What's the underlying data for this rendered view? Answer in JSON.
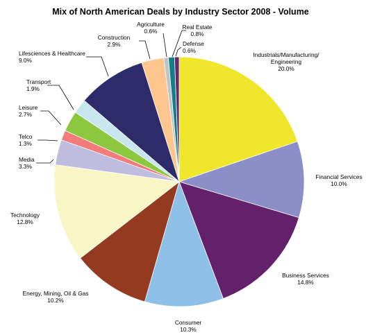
{
  "chart_data": {
    "type": "pie",
    "title": "Mix of North American Deals by Industry Sector 2008 - Volume",
    "start_angle_deg": 0,
    "direction": "clockwise",
    "slices": [
      {
        "label": "Industrials/Manufacturing/ Engineering",
        "lines": [
          "Industrials/Manufacturing/",
          "Engineering"
        ],
        "value": 20.0,
        "value_label": "20.0%",
        "color": "#EFE72C"
      },
      {
        "label": "Financial Services",
        "lines": [
          "Financial Services"
        ],
        "value": 10.0,
        "value_label": "10.0%",
        "color": "#8C8EC8"
      },
      {
        "label": "Business Services",
        "lines": [
          "Business Services"
        ],
        "value": 14.8,
        "value_label": "14.8%",
        "color": "#63206B"
      },
      {
        "label": "Consumer",
        "lines": [
          "Consumer"
        ],
        "value": 10.3,
        "value_label": "10.3%",
        "color": "#8DBFE7"
      },
      {
        "label": "Energy, Mining, Oil & Gas",
        "lines": [
          "Energy, Mining, Oil & Gas"
        ],
        "value": 10.2,
        "value_label": "10.2%",
        "color": "#943B1F"
      },
      {
        "label": "Technology",
        "lines": [
          "Technology"
        ],
        "value": 12.8,
        "value_label": "12.8%",
        "color": "#F9F6C6"
      },
      {
        "label": "Media",
        "lines": [
          "Media"
        ],
        "value": 3.3,
        "value_label": "3.3%",
        "color": "#BFBCE0"
      },
      {
        "label": "Telco",
        "lines": [
          "Telco"
        ],
        "value": 1.3,
        "value_label": "1.3%",
        "color": "#F27B7B"
      },
      {
        "label": "Leisure",
        "lines": [
          "Leisure"
        ],
        "value": 2.7,
        "value_label": "2.7%",
        "color": "#8DC63F"
      },
      {
        "label": "Transport",
        "lines": [
          "Transport"
        ],
        "value": 1.9,
        "value_label": "1.9%",
        "color": "#C7E6EF"
      },
      {
        "label": "Lifesciences & Healthcare",
        "lines": [
          "Lifesciences & Healthcare"
        ],
        "value": 9.0,
        "value_label": "9.0%",
        "color": "#2E2B6A"
      },
      {
        "label": "Construction",
        "lines": [
          "Construction"
        ],
        "value": 2.9,
        "value_label": "2.9%",
        "color": "#FDC68E"
      },
      {
        "label": "Agriculture",
        "lines": [
          "Agriculture"
        ],
        "value": 0.6,
        "value_label": "0.6%",
        "color": "#BEC3C8"
      },
      {
        "label": "Real Estate",
        "lines": [
          "Real Estate"
        ],
        "value": 0.8,
        "value_label": "0.8%",
        "color": "#127E87"
      },
      {
        "label": "Defense",
        "lines": [
          "Defense"
        ],
        "value": 0.6,
        "value_label": "0.6%",
        "color": "#6A2570"
      }
    ]
  }
}
